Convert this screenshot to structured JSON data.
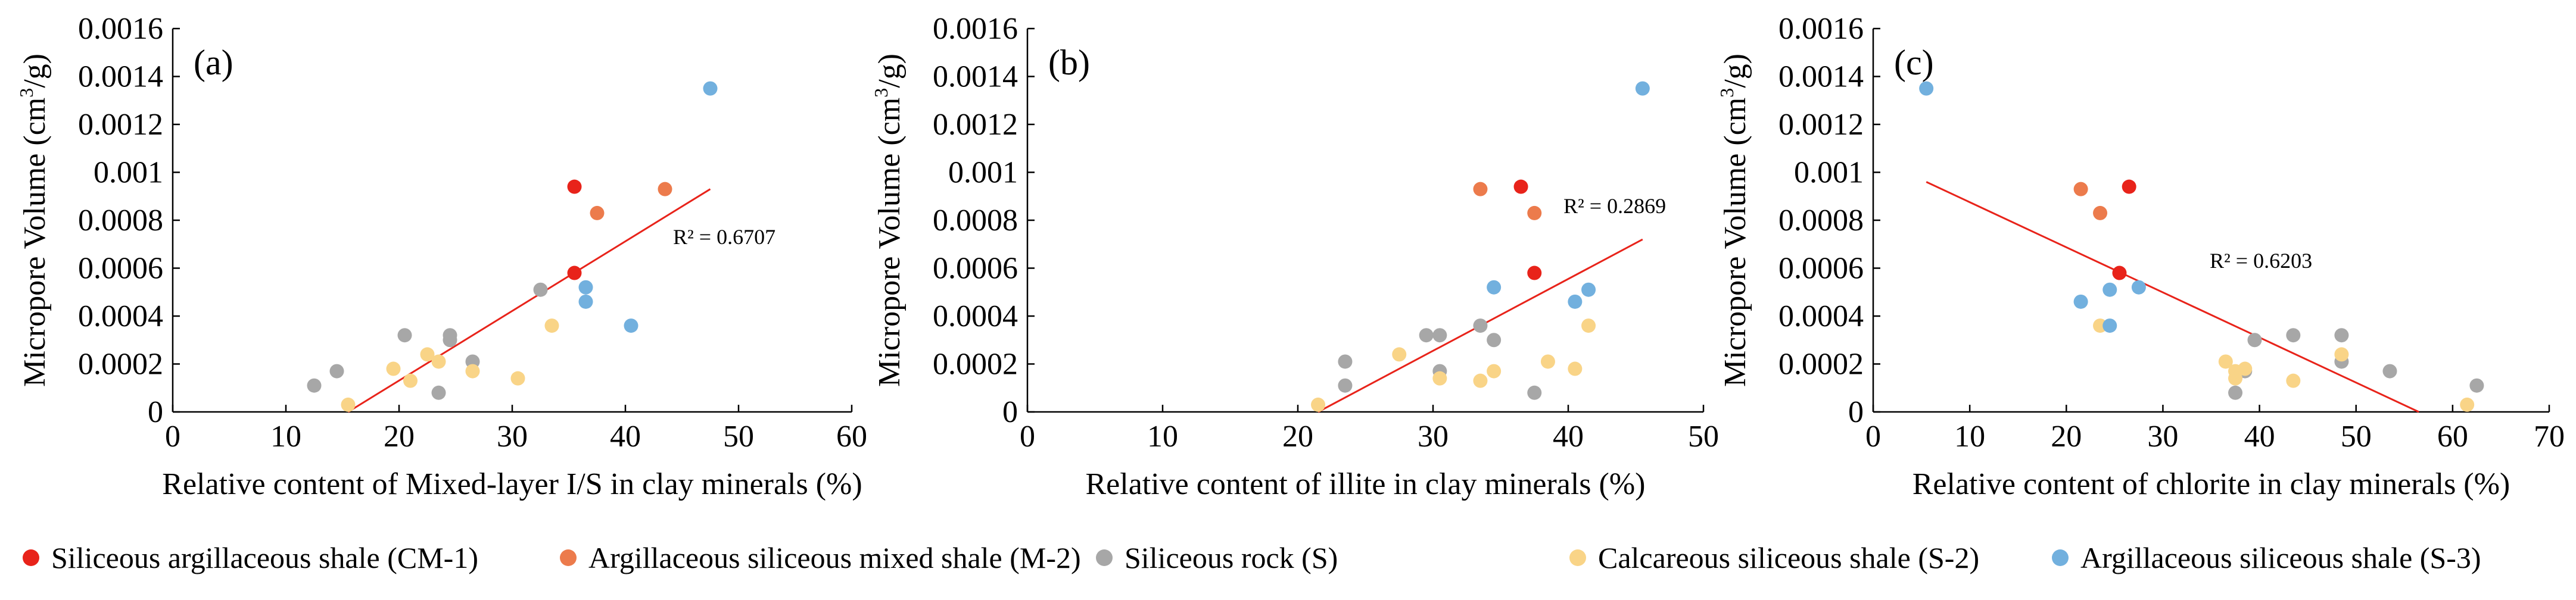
{
  "figure": {
    "legend": [
      {
        "key": "CM-1",
        "label": "Siliceous argillaceous shale (CM-1)",
        "color": "#e8231a"
      },
      {
        "key": "M-2",
        "label": "Argillaceous siliceous mixed shale (M-2)",
        "color": "#ec7b4c"
      },
      {
        "key": "S",
        "label": "Siliceous rock (S)",
        "color": "#a7a7a7"
      },
      {
        "key": "S-2",
        "label": "Calcareous siliceous shale (S-2)",
        "color": "#f9d487"
      },
      {
        "key": "S-3",
        "label": "Argillaceous siliceous shale (S-3)",
        "color": "#72b0de"
      }
    ]
  },
  "chart_data": [
    {
      "type": "scatter",
      "panel": "(a)",
      "xlabel": "Relative content of Mixed-layer I/S in clay minerals (%)",
      "ylabel_main": "Micropore Volume (cm",
      "ylabel_sup": "3",
      "ylabel_end": "/g)",
      "xlim": [
        0,
        60
      ],
      "xticks": [
        0,
        10,
        20,
        30,
        40,
        50,
        60
      ],
      "ylim": [
        0,
        0.0016
      ],
      "yticks": [
        "0",
        "0.0002",
        "0.0004",
        "0.0006",
        "0.0008",
        "0.001",
        "0.0012",
        "0.0014",
        "0.0016"
      ],
      "r2_label": "R² = 0.6707",
      "trendline": {
        "x": [
          15.5,
          47.5
        ],
        "y": [
          0.0,
          0.00093
        ]
      },
      "series": [
        {
          "key": "CM-1",
          "points": [
            [
              35.5,
              0.00094
            ],
            [
              35.5,
              0.00058
            ]
          ]
        },
        {
          "key": "M-2",
          "points": [
            [
              37.5,
              0.00083
            ],
            [
              43.5,
              0.00093
            ]
          ]
        },
        {
          "key": "S",
          "points": [
            [
              12.5,
              0.00011
            ],
            [
              14.5,
              0.00017
            ],
            [
              20.5,
              0.00032
            ],
            [
              23.5,
              8e-05
            ],
            [
              24.5,
              0.0003
            ],
            [
              24.5,
              0.00032
            ],
            [
              26.5,
              0.00021
            ],
            [
              32.5,
              0.00051
            ]
          ]
        },
        {
          "key": "S-2",
          "points": [
            [
              15.5,
              3e-05
            ],
            [
              19.5,
              0.00018
            ],
            [
              21,
              0.00013
            ],
            [
              22.5,
              0.00024
            ],
            [
              23.5,
              0.00021
            ],
            [
              26.5,
              0.00017
            ],
            [
              30.5,
              0.00014
            ],
            [
              33.5,
              0.00036
            ]
          ]
        },
        {
          "key": "S-3",
          "points": [
            [
              36.5,
              0.00052
            ],
            [
              36.5,
              0.00046
            ],
            [
              40.5,
              0.00036
            ],
            [
              47.5,
              0.00135
            ]
          ]
        }
      ]
    },
    {
      "type": "scatter",
      "panel": "(b)",
      "xlabel": "Relative content of illite in clay minerals (%)",
      "ylabel_main": "Micropore Volume (cm",
      "ylabel_sup": "3",
      "ylabel_end": "/g)",
      "xlim": [
        0,
        50
      ],
      "xticks": [
        0,
        10,
        20,
        30,
        40,
        50
      ],
      "ylim": [
        0,
        0.0016
      ],
      "yticks": [
        "0",
        "0.0002",
        "0.0004",
        "0.0006",
        "0.0008",
        "0.001",
        "0.0012",
        "0.0014",
        "0.0016"
      ],
      "r2_label": "R² = 0.2869",
      "trendline": {
        "x": [
          21.5,
          45.5
        ],
        "y": [
          0.0,
          0.00072
        ]
      },
      "series": [
        {
          "key": "CM-1",
          "points": [
            [
              36.5,
              0.00094
            ],
            [
              37.5,
              0.00058
            ]
          ]
        },
        {
          "key": "M-2",
          "points": [
            [
              33.5,
              0.00093
            ],
            [
              37.5,
              0.00083
            ]
          ]
        },
        {
          "key": "S",
          "points": [
            [
              23.5,
              0.00011
            ],
            [
              23.5,
              0.00021
            ],
            [
              29.5,
              0.00032
            ],
            [
              30.5,
              0.00017
            ],
            [
              30.5,
              0.00032
            ],
            [
              34.5,
              0.0003
            ],
            [
              37.5,
              8e-05
            ],
            [
              33.5,
              0.00036
            ]
          ]
        },
        {
          "key": "S-2",
          "points": [
            [
              21.5,
              3e-05
            ],
            [
              27.5,
              0.00024
            ],
            [
              30.5,
              0.00014
            ],
            [
              33.5,
              0.00013
            ],
            [
              34.5,
              0.00017
            ],
            [
              38.5,
              0.00021
            ],
            [
              40.5,
              0.00018
            ],
            [
              41.5,
              0.00036
            ]
          ]
        },
        {
          "key": "S-3",
          "points": [
            [
              34.5,
              0.00052
            ],
            [
              40.5,
              0.00046
            ],
            [
              41.5,
              0.00051
            ],
            [
              45.5,
              0.00135
            ]
          ]
        }
      ]
    },
    {
      "type": "scatter",
      "panel": "(c)",
      "xlabel": "Relative content of chlorite in clay minerals (%)",
      "ylabel_main": "Micropore Volume (cm",
      "ylabel_sup": "3",
      "ylabel_end": "/g)",
      "xlim": [
        0,
        70
      ],
      "xticks": [
        0,
        10,
        20,
        30,
        40,
        50,
        60,
        70
      ],
      "ylim": [
        0,
        0.0016
      ],
      "yticks": [
        "0",
        "0.0002",
        "0.0004",
        "0.0006",
        "0.0008",
        "0.001",
        "0.0012",
        "0.0014",
        "0.0016"
      ],
      "r2_label": "R² = 0.6203",
      "trendline": {
        "x": [
          5.5,
          56.5
        ],
        "y": [
          0.00096,
          0.0
        ]
      },
      "series": [
        {
          "key": "CM-1",
          "points": [
            [
              26.5,
              0.00094
            ],
            [
              25.5,
              0.00058
            ]
          ]
        },
        {
          "key": "M-2",
          "points": [
            [
              21.5,
              0.00093
            ],
            [
              23.5,
              0.00083
            ]
          ]
        },
        {
          "key": "S",
          "points": [
            [
              37.5,
              8e-05
            ],
            [
              39.5,
              0.0003
            ],
            [
              43.5,
              0.00032
            ],
            [
              48.5,
              0.00021
            ],
            [
              48.5,
              0.00032
            ],
            [
              53.5,
              0.00017
            ],
            [
              62.5,
              0.00011
            ],
            [
              38.5,
              0.00017
            ]
          ]
        },
        {
          "key": "S-2",
          "points": [
            [
              23.5,
              0.00036
            ],
            [
              36.5,
              0.00021
            ],
            [
              37.5,
              0.00014
            ],
            [
              38.5,
              0.00018
            ],
            [
              43.5,
              0.00013
            ],
            [
              48.5,
              0.00024
            ],
            [
              61.5,
              3e-05
            ],
            [
              37.5,
              0.00017
            ]
          ]
        },
        {
          "key": "S-3",
          "points": [
            [
              5.5,
              0.00135
            ],
            [
              21.5,
              0.00046
            ],
            [
              24.5,
              0.00036
            ],
            [
              24.5,
              0.00051
            ],
            [
              27.5,
              0.00052
            ]
          ]
        }
      ]
    }
  ]
}
